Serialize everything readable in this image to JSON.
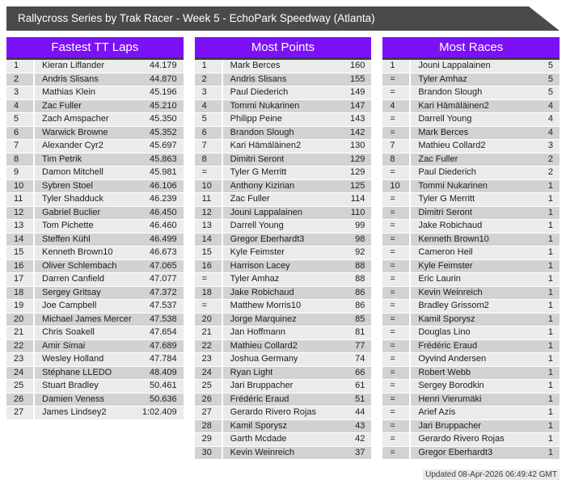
{
  "banner": {
    "title": "Rallycross Series by Trak Racer - Week 5 - EchoPark Speedway (Atlanta)"
  },
  "colors": {
    "banner_bg": "#4a4a4a",
    "header_bg": "#7c11f7",
    "header_underline": "#3c3c3c",
    "row_light": "#ebebeb",
    "row_dark": "#d2d2d2",
    "text": "#1c1c1c"
  },
  "footer": {
    "updated": "Updated 08-Apr-2026 06:49:42 GMT"
  },
  "tables": [
    {
      "title": "Fastest TT Laps",
      "rows": [
        [
          "1",
          "Kieran Liflander",
          "44.179"
        ],
        [
          "2",
          "Andris Slisans",
          "44.870"
        ],
        [
          "3",
          "Mathias Klein",
          "45.196"
        ],
        [
          "4",
          "Zac Fuller",
          "45.210"
        ],
        [
          "5",
          "Zach Amspacher",
          "45.350"
        ],
        [
          "6",
          "Warwick Browne",
          "45.352"
        ],
        [
          "7",
          "Alexander Cyr2",
          "45.697"
        ],
        [
          "8",
          "Tim Petrik",
          "45.863"
        ],
        [
          "9",
          "Damon Mitchell",
          "45.981"
        ],
        [
          "10",
          "Sybren Stoel",
          "46.106"
        ],
        [
          "11",
          "Tyler Shadduck",
          "46.239"
        ],
        [
          "12",
          "Gabriel Buclier",
          "46.450"
        ],
        [
          "13",
          "Tom Pichette",
          "46.460"
        ],
        [
          "14",
          "Steffen Kühl",
          "46.499"
        ],
        [
          "15",
          "Kenneth Brown10",
          "46.673"
        ],
        [
          "16",
          "Oliver Schlembach",
          "47.065"
        ],
        [
          "17",
          "Darren Canfield",
          "47.077"
        ],
        [
          "18",
          "Sergey Gritsay",
          "47.372"
        ],
        [
          "19",
          "Joe Campbell",
          "47.537"
        ],
        [
          "20",
          "Michael James Mercer",
          "47.538"
        ],
        [
          "21",
          "Chris Soakell",
          "47.654"
        ],
        [
          "22",
          "Amir Simai",
          "47.689"
        ],
        [
          "23",
          "Wesley Holland",
          "47.784"
        ],
        [
          "24",
          "Stéphane LLEDO",
          "48.409"
        ],
        [
          "25",
          "Stuart Bradley",
          "50.461"
        ],
        [
          "26",
          "Damien Veness",
          "50.636"
        ],
        [
          "27",
          "James Lindsey2",
          "1:02.409"
        ]
      ]
    },
    {
      "title": "Most Points",
      "rows": [
        [
          "1",
          "Mark Berces",
          "160"
        ],
        [
          "2",
          "Andris Slisans",
          "155"
        ],
        [
          "3",
          "Paul Diederich",
          "149"
        ],
        [
          "4",
          "Tommi Nukarinen",
          "147"
        ],
        [
          "5",
          "Philipp Peine",
          "143"
        ],
        [
          "6",
          "Brandon Slough",
          "142"
        ],
        [
          "7",
          "Kari Hämäläinen2",
          "130"
        ],
        [
          "8",
          "Dimitri Seront",
          "129"
        ],
        [
          "=",
          "Tyler G Merritt",
          "129"
        ],
        [
          "10",
          "Anthony Kizirian",
          "125"
        ],
        [
          "11",
          "Zac Fuller",
          "114"
        ],
        [
          "12",
          "Jouni Lappalainen",
          "110"
        ],
        [
          "13",
          "Darrell Young",
          "99"
        ],
        [
          "14",
          "Gregor Eberhardt3",
          "98"
        ],
        [
          "15",
          "Kyle Feimster",
          "92"
        ],
        [
          "16",
          "Harrison Lacey",
          "88"
        ],
        [
          "=",
          "Tyler Amhaz",
          "88"
        ],
        [
          "18",
          "Jake Robichaud",
          "86"
        ],
        [
          "=",
          "Matthew Morris10",
          "86"
        ],
        [
          "20",
          "Jorge Marquinez",
          "85"
        ],
        [
          "21",
          "Jan Hoffmann",
          "81"
        ],
        [
          "22",
          "Mathieu Collard2",
          "77"
        ],
        [
          "23",
          "Joshua Germany",
          "74"
        ],
        [
          "24",
          "Ryan Light",
          "66"
        ],
        [
          "25",
          "Jari Bruppacher",
          "61"
        ],
        [
          "26",
          "Frédéric Eraud",
          "51"
        ],
        [
          "27",
          "Gerardo Rivero Rojas",
          "44"
        ],
        [
          "28",
          "Kamil Sporysz",
          "43"
        ],
        [
          "29",
          "Garth Mcdade",
          "42"
        ],
        [
          "30",
          "Kevin Weinreich",
          "37"
        ]
      ]
    },
    {
      "title": "Most Races",
      "rows": [
        [
          "1",
          "Jouni Lappalainen",
          "5"
        ],
        [
          "=",
          "Tyler Amhaz",
          "5"
        ],
        [
          "=",
          "Brandon Slough",
          "5"
        ],
        [
          "4",
          "Kari Hämäläinen2",
          "4"
        ],
        [
          "=",
          "Darrell Young",
          "4"
        ],
        [
          "=",
          "Mark Berces",
          "4"
        ],
        [
          "7",
          "Mathieu Collard2",
          "3"
        ],
        [
          "8",
          "Zac Fuller",
          "2"
        ],
        [
          "=",
          "Paul Diederich",
          "2"
        ],
        [
          "10",
          "Tommi Nukarinen",
          "1"
        ],
        [
          "=",
          "Tyler G Merritt",
          "1"
        ],
        [
          "=",
          "Dimitri Seront",
          "1"
        ],
        [
          "=",
          "Jake Robichaud",
          "1"
        ],
        [
          "=",
          "Kenneth Brown10",
          "1"
        ],
        [
          "=",
          "Cameron Heil",
          "1"
        ],
        [
          "=",
          "Kyle Feimster",
          "1"
        ],
        [
          "=",
          "Eric Laurin",
          "1"
        ],
        [
          "=",
          "Kevin Weinreich",
          "1"
        ],
        [
          "=",
          "Bradley Grissom2",
          "1"
        ],
        [
          "=",
          "Kamil Sporysz",
          "1"
        ],
        [
          "=",
          "Douglas Lino",
          "1"
        ],
        [
          "=",
          "Frédéric Eraud",
          "1"
        ],
        [
          "=",
          "Oyvind Andersen",
          "1"
        ],
        [
          "=",
          "Robert Webb",
          "1"
        ],
        [
          "=",
          "Sergey Borodkin",
          "1"
        ],
        [
          "=",
          "Henri Vierumäki",
          "1"
        ],
        [
          "=",
          "Arief Azis",
          "1"
        ],
        [
          "=",
          "Jari Bruppacher",
          "1"
        ],
        [
          "=",
          "Gerardo Rivero Rojas",
          "1"
        ],
        [
          "=",
          "Gregor Eberhardt3",
          "1"
        ]
      ]
    }
  ]
}
